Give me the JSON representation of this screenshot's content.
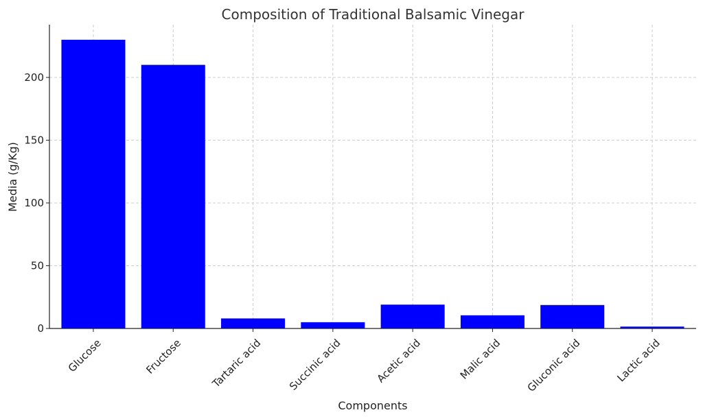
{
  "chart_data": {
    "type": "bar",
    "title": "Composition of Traditional Balsamic Vinegar",
    "xlabel": "Components",
    "ylabel": "Media (g/Kg)",
    "categories": [
      "Glucose",
      "Fructose",
      "Tartaric acid",
      "Succinic acid",
      "Acetic acid",
      "Malic acid",
      "Gluconic acid",
      "Lactic acid"
    ],
    "values": [
      230,
      210,
      8,
      5,
      19,
      10.5,
      18.7,
      1.5
    ],
    "ylim": [
      0,
      242
    ],
    "yticks": [
      0,
      50,
      100,
      150,
      200
    ],
    "grid": true,
    "bar_color": "#0000ff"
  }
}
